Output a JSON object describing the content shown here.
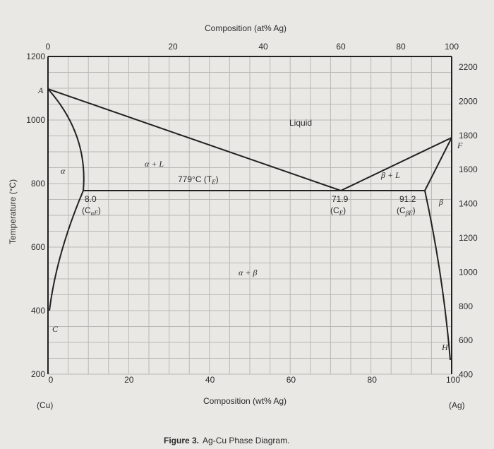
{
  "top_axis": {
    "title": "Composition (at% Ag)",
    "ticks": [
      "0",
      "20",
      "40",
      "60",
      "80",
      "100"
    ]
  },
  "bottom_axis": {
    "title": "Composition (wt% Ag)",
    "ticks": [
      "0",
      "20",
      "40",
      "60",
      "80",
      "100"
    ],
    "left_end": "(Cu)",
    "right_end": "(Ag)"
  },
  "left_axis": {
    "title": "Temperature (°C)",
    "ticks": [
      "1200",
      "1000",
      "800",
      "600",
      "400",
      "200"
    ]
  },
  "right_axis": {
    "ticks": [
      "2200",
      "2000",
      "1800",
      "1600",
      "1400",
      "1200",
      "1000",
      "800",
      "600",
      "400"
    ]
  },
  "labels": {
    "a_point": "A",
    "f_point": "F",
    "c_point": "C",
    "h_point": "H",
    "liquid": "Liquid",
    "alpha": "α",
    "alpha_l": "α + L",
    "beta_l": "β + L",
    "beta": "β",
    "alpha_beta": "α + β",
    "eutectic_temp": {
      "main": "779°C (T",
      "sub": "E",
      "end": ")"
    },
    "c_alpha_e": {
      "value": "8.0",
      "main": "(C",
      "sub": "αE",
      "end": ")"
    },
    "c_e": {
      "value": "71.9",
      "main": "(C",
      "sub": "E",
      "end": ")"
    },
    "c_beta_e": {
      "value": "91.2",
      "main": "(C",
      "sub": "βE",
      "end": ")"
    }
  },
  "figure": {
    "label": "Figure 3.",
    "caption": "Ag-Cu Phase Diagram."
  }
}
